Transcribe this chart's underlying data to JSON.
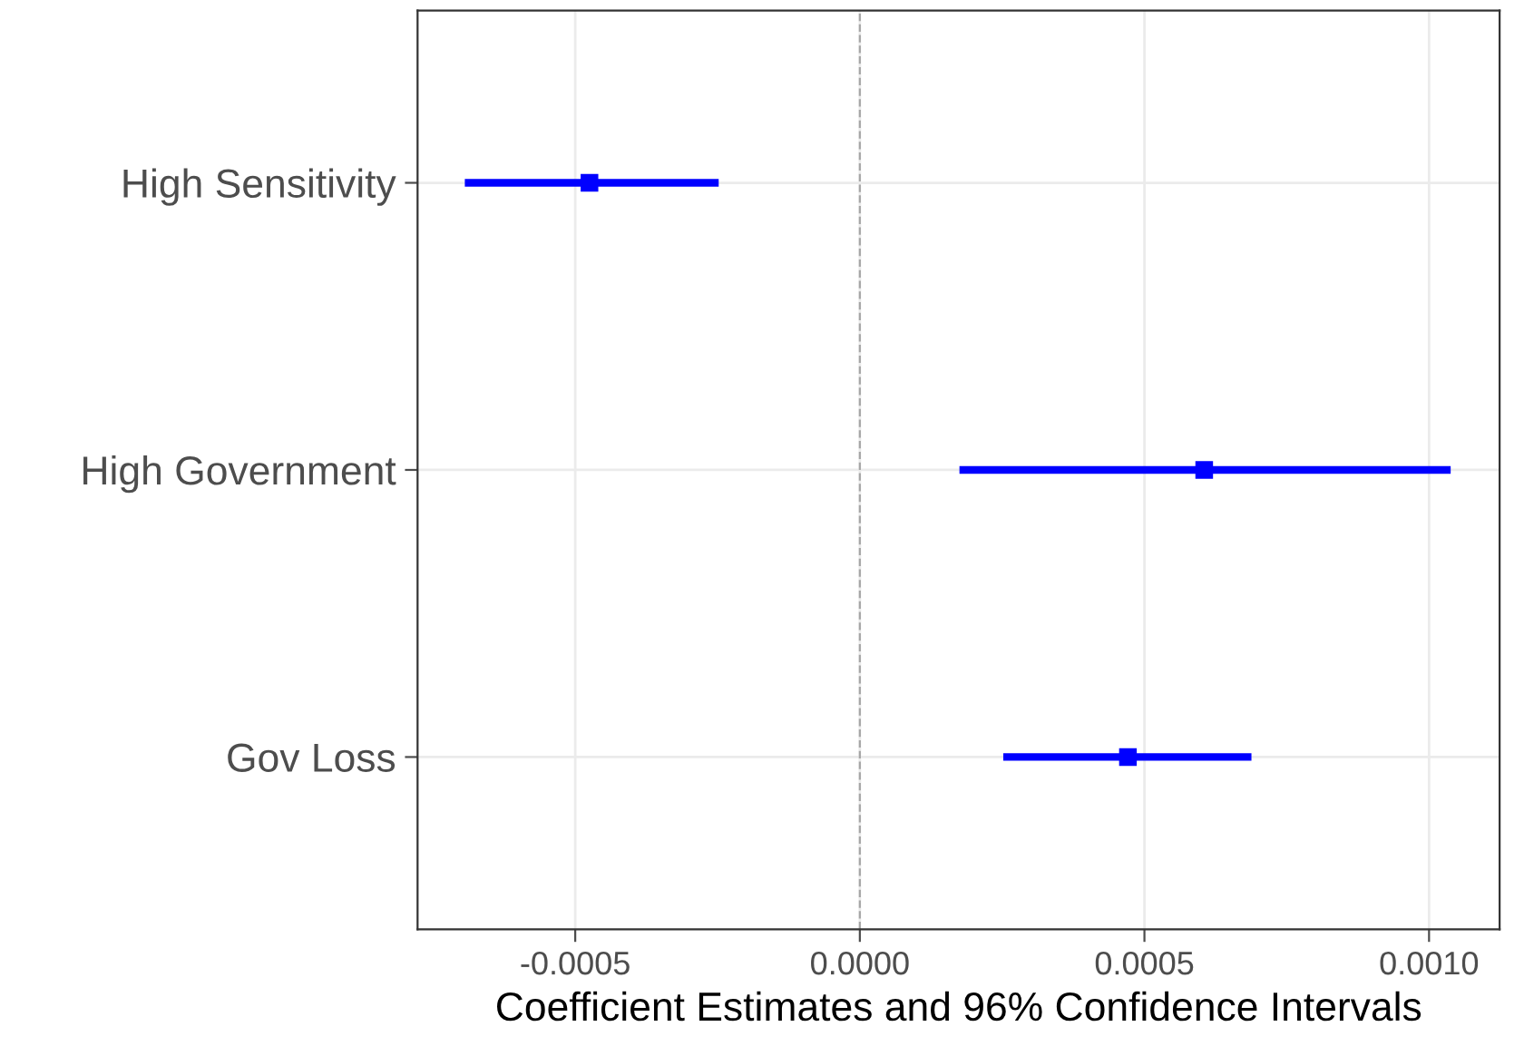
{
  "chart_data": {
    "type": "scatter",
    "orientation": "horizontal",
    "xlabel": "Coefficient Estimates and 96% Confidence Intervals",
    "categories": [
      "High Sensitivity",
      "High Government",
      "Gov Loss"
    ],
    "series": [
      {
        "color": "#0000ff",
        "values": [
          -0.000475,
          0.000605,
          0.000471
        ],
        "errors": [
          [
            -0.000694,
            -0.000248
          ],
          [
            0.000175,
            0.001038
          ],
          [
            0.000252,
            0.000688
          ]
        ]
      }
    ],
    "xlim": [
      -0.000777,
      0.001124
    ],
    "xticks": [
      {
        "value": -0.0005,
        "label": "-0.0005"
      },
      {
        "value": 0,
        "label": "0.0000"
      },
      {
        "value": 0.0005,
        "label": "0.0005"
      },
      {
        "value": 0.001,
        "label": "0.0010"
      }
    ],
    "ref_lines": [
      {
        "axis": "x",
        "value": 0,
        "color": "#a6a6a6",
        "line_style": "dashed"
      }
    ],
    "grid": true,
    "marker": "square"
  }
}
